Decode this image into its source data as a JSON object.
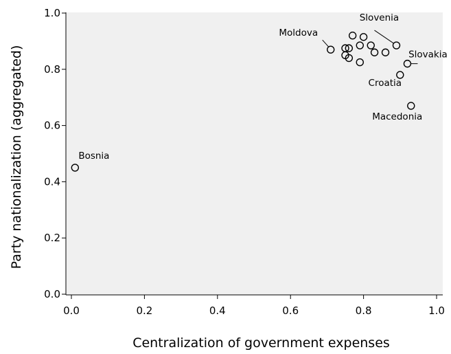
{
  "chart_data": {
    "type": "scatter",
    "xlabel": "Centralization of government expenses",
    "ylabel": "Party nationalization (aggregated)",
    "xlim": [
      0.0,
      1.0
    ],
    "ylim": [
      0.0,
      1.0
    ],
    "xticks": [
      "0.0",
      "0.2",
      "0.4",
      "0.6",
      "0.8",
      "1.0"
    ],
    "yticks": [
      "0.0",
      "0.2",
      "0.4",
      "0.6",
      "0.8",
      "1.0"
    ],
    "grid": false,
    "background": "#f0f0f0",
    "marker": "open-circle",
    "points": [
      {
        "x": 0.01,
        "y": 0.45,
        "label": "Bosnia"
      },
      {
        "x": 0.71,
        "y": 0.87,
        "label": "Moldova"
      },
      {
        "x": 0.75,
        "y": 0.875,
        "label": ""
      },
      {
        "x": 0.76,
        "y": 0.875,
        "label": ""
      },
      {
        "x": 0.75,
        "y": 0.85,
        "label": ""
      },
      {
        "x": 0.76,
        "y": 0.84,
        "label": ""
      },
      {
        "x": 0.77,
        "y": 0.92,
        "label": ""
      },
      {
        "x": 0.79,
        "y": 0.885,
        "label": ""
      },
      {
        "x": 0.79,
        "y": 0.825,
        "label": ""
      },
      {
        "x": 0.8,
        "y": 0.915,
        "label": ""
      },
      {
        "x": 0.82,
        "y": 0.885,
        "label": ""
      },
      {
        "x": 0.83,
        "y": 0.86,
        "label": ""
      },
      {
        "x": 0.86,
        "y": 0.86,
        "label": ""
      },
      {
        "x": 0.89,
        "y": 0.885,
        "label": "Slovenia"
      },
      {
        "x": 0.92,
        "y": 0.82,
        "label": "Slovakia"
      },
      {
        "x": 0.9,
        "y": 0.78,
        "label": "Croatia"
      },
      {
        "x": 0.93,
        "y": 0.67,
        "label": "Macedonia"
      }
    ]
  }
}
